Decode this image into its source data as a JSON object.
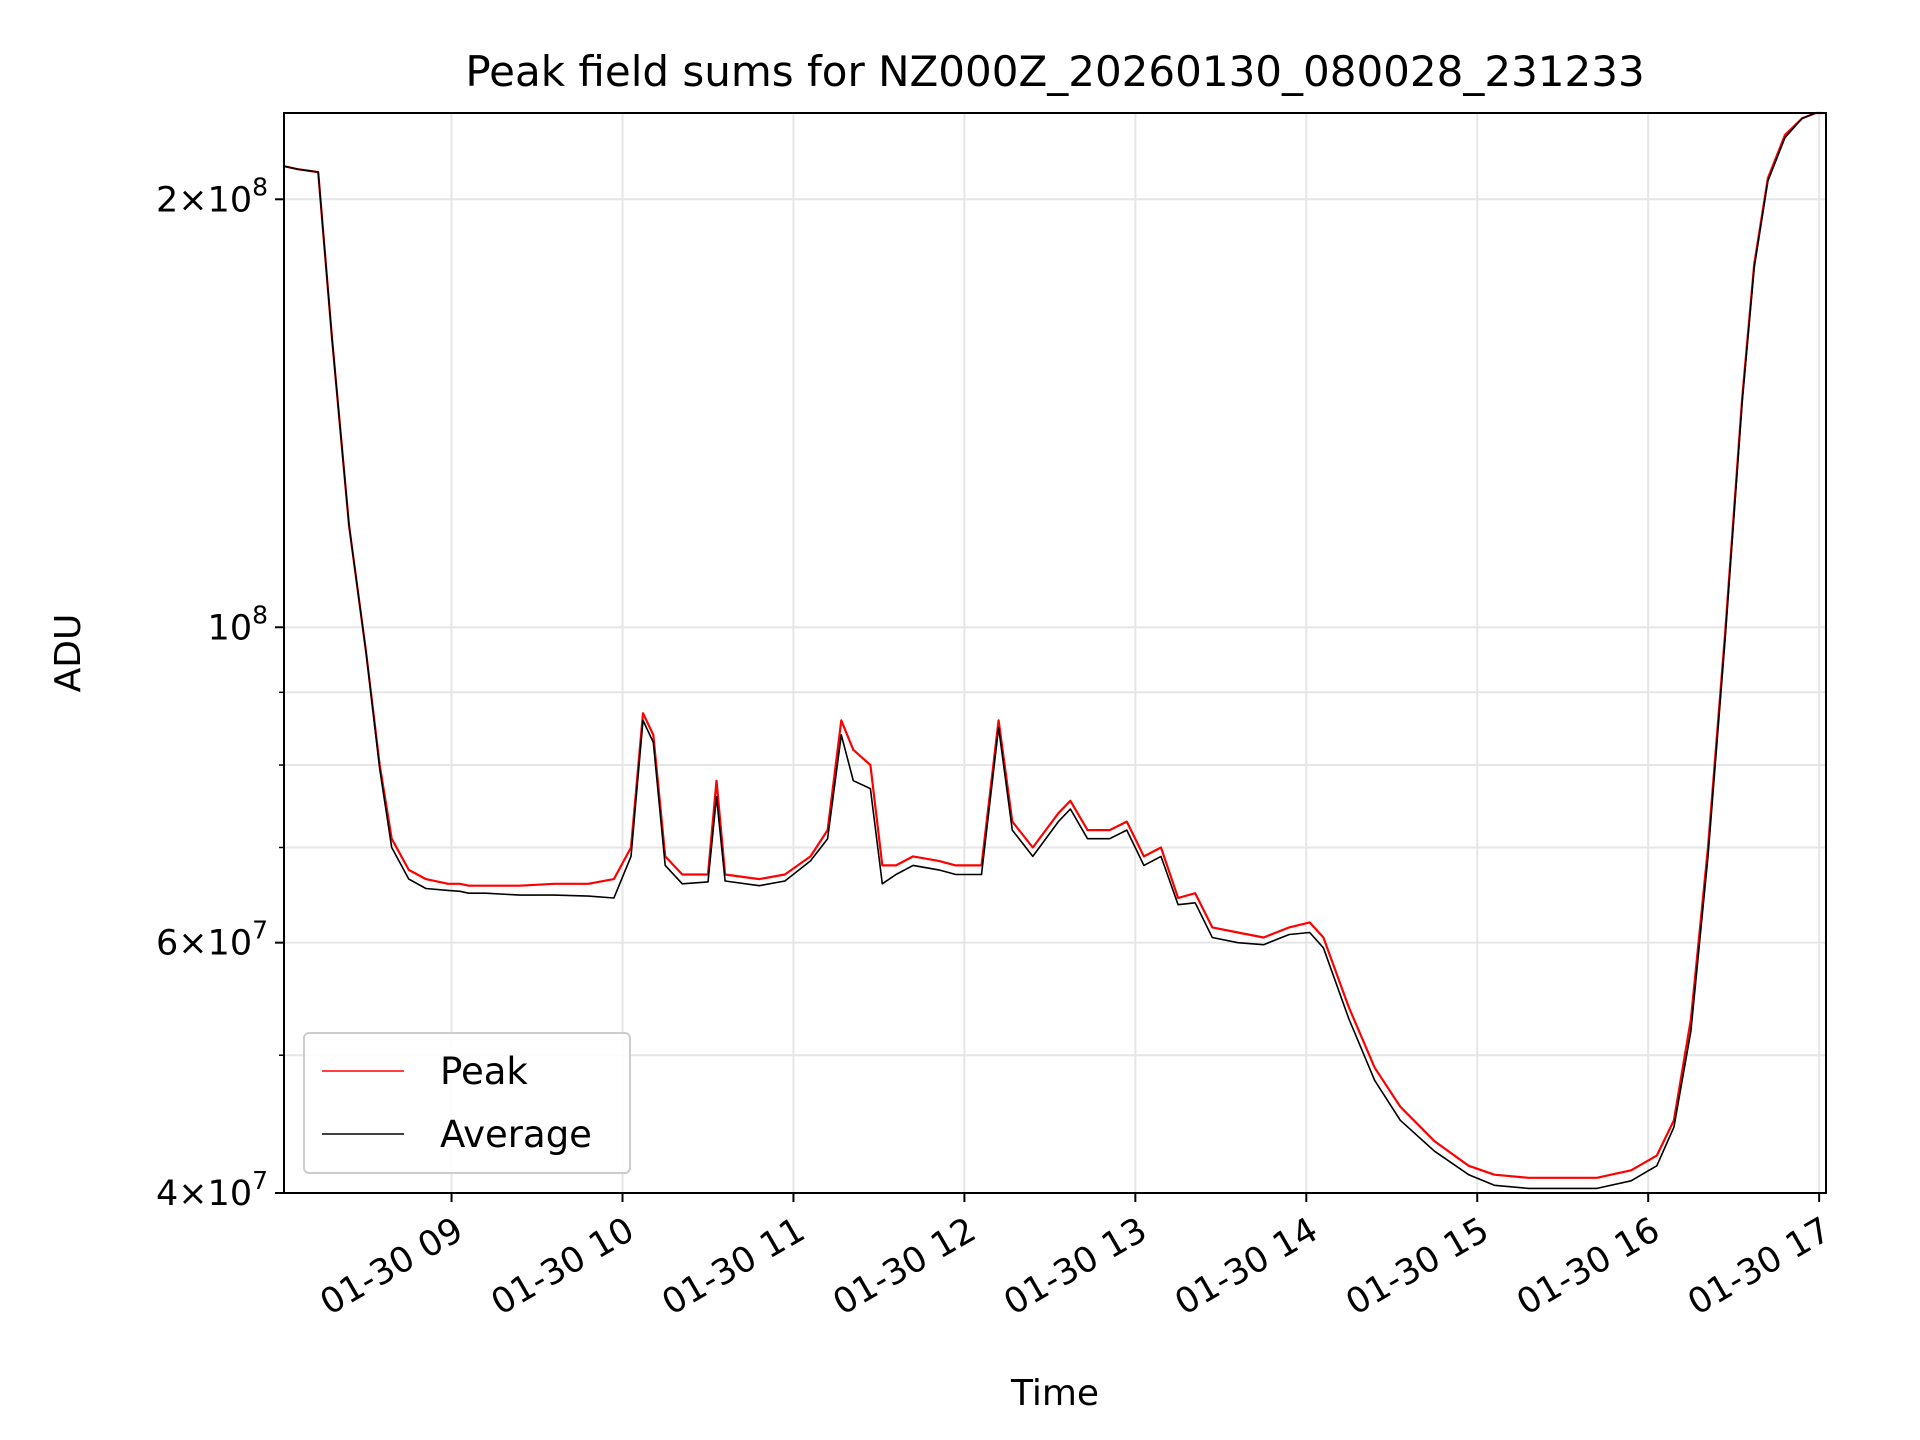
{
  "chart_data": {
    "type": "line",
    "title": "Peak field sums for NZ000Z_20260130_080028_231233",
    "xlabel": "Time",
    "ylabel": "ADU",
    "y_scale": "log",
    "grid": true,
    "legend_position": "lower-left",
    "x_range_hours": [
      8.02,
      17.04
    ],
    "y_range": [
      40000000,
      230000000
    ],
    "x_ticks": [
      {
        "hour": 9,
        "label": "01-30 09"
      },
      {
        "hour": 10,
        "label": "01-30 10"
      },
      {
        "hour": 11,
        "label": "01-30 11"
      },
      {
        "hour": 12,
        "label": "01-30 12"
      },
      {
        "hour": 13,
        "label": "01-30 13"
      },
      {
        "hour": 14,
        "label": "01-30 14"
      },
      {
        "hour": 15,
        "label": "01-30 15"
      },
      {
        "hour": 16,
        "label": "01-30 16"
      },
      {
        "hour": 17,
        "label": "01-30 17"
      }
    ],
    "y_ticks": [
      {
        "value": 40000000,
        "mantissa": "4",
        "exponent": "7"
      },
      {
        "value": 60000000,
        "mantissa": "6",
        "exponent": "7"
      },
      {
        "value": 100000000,
        "mantissa": "",
        "exponent": "8"
      },
      {
        "value": 200000000,
        "mantissa": "2",
        "exponent": "8"
      }
    ],
    "y_minor_ticks": [
      50000000,
      70000000,
      80000000,
      90000000
    ],
    "x_hours": [
      8.02,
      8.1,
      8.22,
      8.3,
      8.4,
      8.5,
      8.58,
      8.65,
      8.75,
      8.85,
      8.98,
      9.05,
      9.1,
      9.2,
      9.4,
      9.6,
      9.8,
      9.95,
      10.05,
      10.12,
      10.18,
      10.25,
      10.35,
      10.5,
      10.55,
      10.6,
      10.8,
      10.95,
      11.1,
      11.2,
      11.28,
      11.35,
      11.45,
      11.52,
      11.6,
      11.7,
      11.85,
      11.95,
      12.1,
      12.2,
      12.28,
      12.4,
      12.55,
      12.62,
      12.72,
      12.85,
      12.95,
      13.05,
      13.15,
      13.25,
      13.35,
      13.45,
      13.6,
      13.75,
      13.9,
      14.02,
      14.1,
      14.25,
      14.4,
      14.55,
      14.75,
      14.95,
      15.1,
      15.3,
      15.5,
      15.7,
      15.9,
      16.05,
      16.15,
      16.25,
      16.35,
      16.45,
      16.55,
      16.62,
      16.7,
      16.8,
      16.9,
      16.98,
      17.02
    ],
    "series": [
      {
        "name": "Peak",
        "color": "#ff0000",
        "values": [
          211000000,
          210000000,
          209000000,
          160000000,
          118000000,
          96000000,
          80000000,
          71000000,
          67500000,
          66500000,
          66000000,
          66000000,
          65800000,
          65800000,
          65800000,
          66000000,
          66000000,
          66500000,
          70000000,
          87000000,
          84000000,
          69000000,
          67000000,
          67000000,
          78000000,
          67000000,
          66500000,
          67000000,
          69000000,
          72000000,
          86000000,
          82000000,
          80000000,
          68000000,
          68000000,
          69000000,
          68500000,
          68000000,
          68000000,
          86000000,
          73000000,
          70000000,
          74000000,
          75500000,
          72000000,
          72000000,
          73000000,
          69000000,
          70000000,
          64500000,
          65000000,
          61500000,
          61000000,
          60500000,
          61500000,
          62000000,
          60500000,
          54000000,
          49000000,
          46000000,
          43500000,
          41800000,
          41200000,
          41000000,
          41000000,
          41000000,
          41500000,
          42500000,
          45000000,
          53000000,
          70000000,
          99000000,
          145000000,
          180000000,
          207000000,
          222000000,
          228000000,
          230000000,
          230000000
        ]
      },
      {
        "name": "Average",
        "color": "#000000",
        "values": [
          211000000,
          210000000,
          209000000,
          160000000,
          118000000,
          96000000,
          79500000,
          70000000,
          66500000,
          65500000,
          65300000,
          65200000,
          65000000,
          65000000,
          64800000,
          64800000,
          64700000,
          64500000,
          69000000,
          86000000,
          83000000,
          68000000,
          66000000,
          66200000,
          76000000,
          66300000,
          65800000,
          66300000,
          68500000,
          71000000,
          84000000,
          78000000,
          77000000,
          66000000,
          67000000,
          68000000,
          67500000,
          67000000,
          67000000,
          85000000,
          72000000,
          69000000,
          73000000,
          74500000,
          71000000,
          71000000,
          72000000,
          68000000,
          69000000,
          63800000,
          64000000,
          60500000,
          60000000,
          59800000,
          60800000,
          61000000,
          59500000,
          53000000,
          48000000,
          45000000,
          42800000,
          41200000,
          40500000,
          40300000,
          40300000,
          40300000,
          40800000,
          41800000,
          44500000,
          52000000,
          69000000,
          98000000,
          144000000,
          179000000,
          206000000,
          221000000,
          228000000,
          230000000,
          230000000
        ]
      }
    ]
  }
}
